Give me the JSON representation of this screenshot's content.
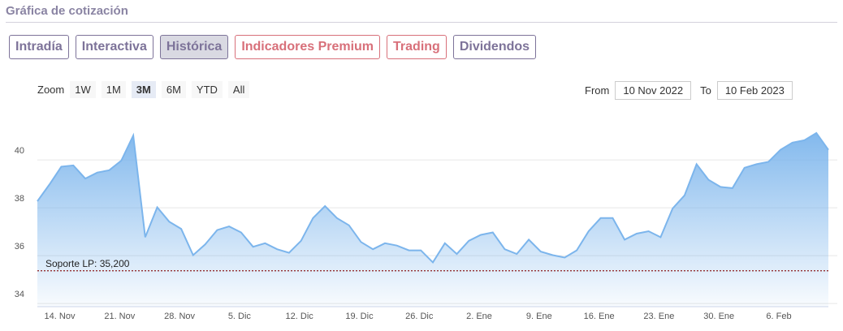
{
  "header": {
    "title": "Gráfica de cotización"
  },
  "tabs": {
    "active": 2,
    "items": [
      {
        "label": "Intradía",
        "color": "#7d7399"
      },
      {
        "label": "Interactiva",
        "color": "#7d7399"
      },
      {
        "label": "Histórica",
        "color": "#7d7399"
      },
      {
        "label": "Indicadores Premium",
        "color": "#d8707a"
      },
      {
        "label": "Trading",
        "color": "#d8707a"
      },
      {
        "label": "Dividendos",
        "color": "#7d7399"
      }
    ]
  },
  "zoom": {
    "label": "Zoom",
    "selected": 2,
    "buttons": [
      "1W",
      "1M",
      "3M",
      "6M",
      "YTD",
      "All"
    ]
  },
  "range": {
    "from_label": "From",
    "from": "10 Nov 2022",
    "to_label": "To",
    "to": "10 Feb 2023"
  },
  "chart_data": {
    "type": "area",
    "color": "#7cb5ec",
    "grid": true,
    "categories": [
      null,
      null,
      "14. Nov",
      null,
      null,
      null,
      null,
      "21. Nov",
      null,
      null,
      null,
      null,
      "28. Nov",
      null,
      null,
      null,
      null,
      "5. Dic",
      null,
      null,
      null,
      null,
      "12. Dic",
      null,
      null,
      null,
      null,
      "19. Dic",
      null,
      null,
      null,
      null,
      "26. Dic",
      null,
      null,
      null,
      null,
      "2. Ene",
      null,
      null,
      null,
      null,
      "9. Ene",
      null,
      null,
      null,
      null,
      "16. Ene",
      null,
      null,
      null,
      null,
      "23. Ene",
      null,
      null,
      null,
      null,
      "30. Ene",
      null,
      null,
      null,
      null,
      "6. Feb",
      null,
      null,
      null,
      null
    ],
    "values": [
      38.1,
      38.8,
      39.55,
      39.6,
      39.05,
      39.3,
      39.4,
      39.8,
      40.85,
      36.6,
      37.85,
      37.25,
      36.95,
      35.85,
      36.3,
      36.9,
      37.05,
      36.8,
      36.2,
      36.35,
      36.1,
      35.95,
      36.45,
      37.4,
      37.9,
      37.4,
      37.1,
      36.4,
      36.1,
      36.35,
      36.25,
      36.05,
      36.05,
      35.55,
      36.35,
      35.9,
      36.45,
      36.7,
      36.8,
      36.1,
      35.9,
      36.5,
      36.0,
      35.85,
      35.75,
      36.05,
      36.85,
      37.4,
      37.4,
      36.5,
      36.75,
      36.85,
      36.6,
      37.8,
      38.35,
      39.65,
      39.0,
      38.7,
      38.65,
      39.5,
      39.65,
      39.75,
      40.25,
      40.55,
      40.65,
      40.95,
      40.25
    ],
    "ylim": [
      33.7,
      41.9
    ],
    "yticks": [
      34,
      36,
      38,
      40
    ],
    "annotation": {
      "label": "Soporte LP: 35,200",
      "value": 35.2,
      "color": "#8b1a1a"
    }
  }
}
